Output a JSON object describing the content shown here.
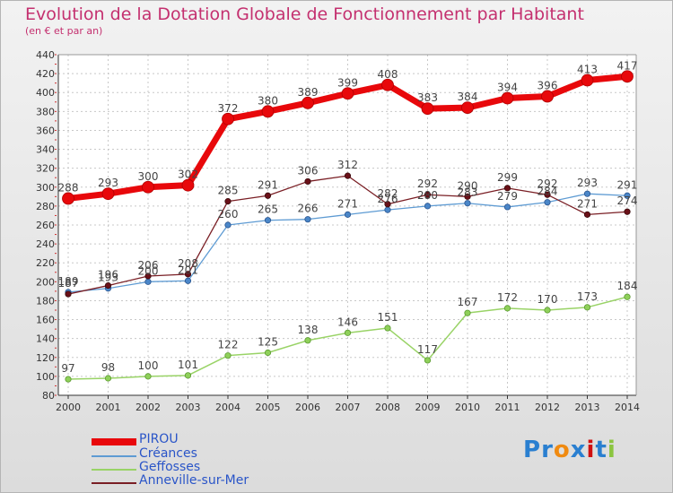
{
  "title": "Evolution de la Dotation Globale de Fonctionnement par Habitant",
  "subtitle": "(en € et par an)",
  "brand": "Proxiti",
  "chart_data": {
    "type": "line",
    "x": [
      "2000",
      "2001",
      "2002",
      "2003",
      "2004",
      "2005",
      "2006",
      "2007",
      "2008",
      "2009",
      "2010",
      "2011",
      "2012",
      "2013",
      "2014"
    ],
    "ylim": [
      80,
      440
    ],
    "yticks": [
      80,
      100,
      120,
      140,
      160,
      180,
      200,
      220,
      240,
      260,
      280,
      300,
      320,
      340,
      360,
      380,
      400,
      420,
      440
    ],
    "grid": true,
    "legend_position": "bottom-left",
    "series": [
      {
        "name": "PIROU",
        "color": "#e8080b",
        "values": [
          288,
          293,
          300,
          302,
          372,
          380,
          389,
          399,
          408,
          383,
          384,
          394,
          396,
          413,
          417
        ],
        "labels": [
          "288",
          "293",
          "300",
          "302",
          "372",
          "380",
          "389",
          "399",
          "408",
          "383",
          "384",
          "394",
          "396",
          "413",
          "417"
        ]
      },
      {
        "name": "Créances",
        "color": "#5e9bd3",
        "values": [
          189,
          193,
          200,
          201,
          260,
          265,
          266,
          271,
          276,
          280,
          283,
          279,
          284,
          293,
          291
        ],
        "labels": [
          "189",
          "193",
          "200",
          "201",
          "260",
          "265",
          "266",
          "271",
          "276",
          "280",
          "283",
          "279",
          "284",
          "293",
          "291"
        ]
      },
      {
        "name": "Geffosses",
        "color": "#99d366",
        "values": [
          97,
          98,
          100,
          101,
          122,
          125,
          138,
          146,
          151,
          117,
          167,
          172,
          170,
          173,
          184
        ],
        "labels": [
          "97",
          "98",
          "100",
          "101",
          "122",
          "125",
          "138",
          "146",
          "151",
          "117",
          "167",
          "172",
          "170",
          "173",
          "184"
        ]
      },
      {
        "name": "Anneville-sur-Mer",
        "color": "#7a1f25",
        "values": [
          187,
          196,
          206,
          208,
          285,
          291,
          306,
          312,
          282,
          292,
          290,
          299,
          292,
          271,
          274
        ],
        "labels": [
          "187",
          "196",
          "206",
          "208",
          "285",
          "291",
          "306",
          "312",
          "282",
          "292",
          "290",
          "299",
          "292",
          "271",
          "274"
        ]
      }
    ]
  }
}
